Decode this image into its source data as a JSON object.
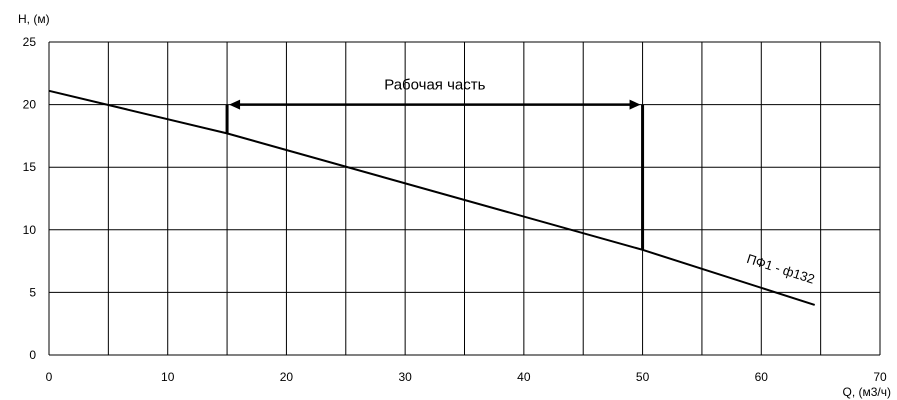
{
  "chart_data": {
    "type": "line",
    "xlabel": "Q, (м3/ч)",
    "ylabel": "H, (м)",
    "xlim": [
      0,
      70
    ],
    "ylim": [
      0,
      25
    ],
    "x_ticks": [
      0,
      10,
      20,
      30,
      40,
      50,
      60,
      70
    ],
    "y_ticks": [
      0,
      5,
      10,
      15,
      20,
      25
    ],
    "grid": true,
    "series": [
      {
        "name": "ПФ1 - ф132",
        "x": [
          0,
          15,
          50,
          64.5
        ],
        "y": [
          21.1,
          17.7,
          8.4,
          4.0
        ]
      }
    ],
    "annotations": {
      "working_range_label": "Рабочая часть",
      "working_range_x": [
        15,
        50
      ],
      "working_range_y": 20
    }
  }
}
